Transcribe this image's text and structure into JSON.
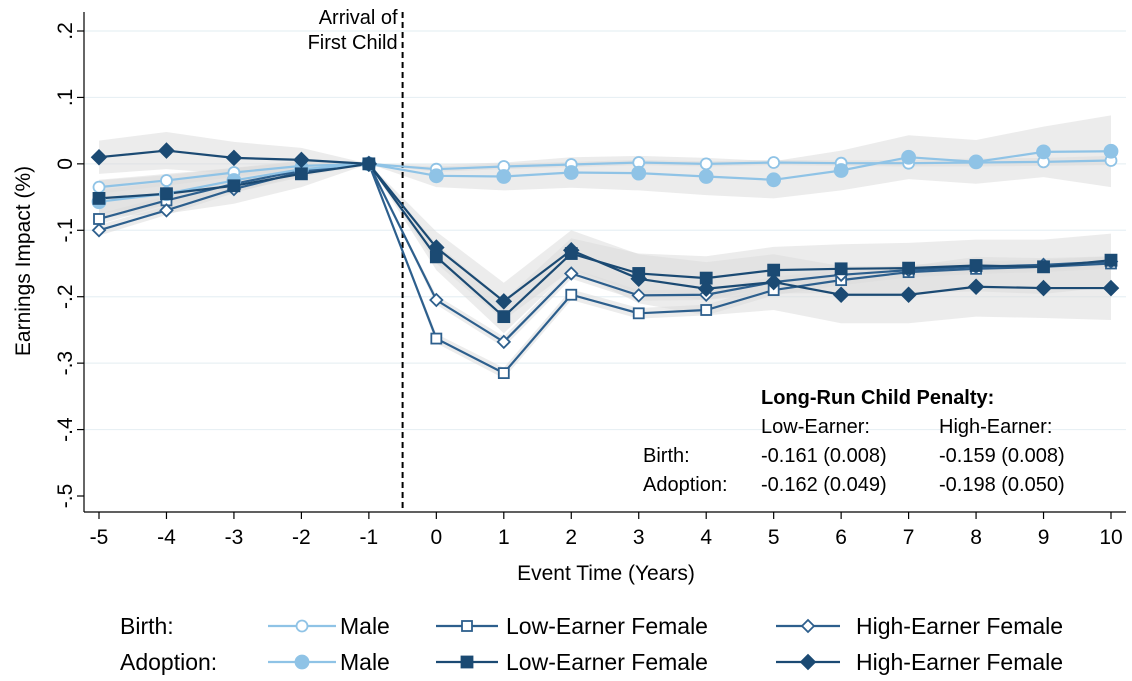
{
  "chart_data": {
    "type": "line",
    "title": "",
    "xlabel": "Event Time (Years)",
    "ylabel": "Earnings Impact (%)",
    "xlim": [
      -5,
      10
    ],
    "ylim": [
      -0.5,
      0.2
    ],
    "x": [
      -5,
      -4,
      -3,
      -2,
      -1,
      0,
      1,
      2,
      3,
      4,
      5,
      6,
      7,
      8,
      9,
      10
    ],
    "x_tick_labels": [
      "-5",
      "-4",
      "-3",
      "-2",
      "-1",
      "0",
      "1",
      "2",
      "3",
      "4",
      "5",
      "6",
      "7",
      "8",
      "9",
      "10"
    ],
    "y_ticks": [
      -0.5,
      -0.4,
      -0.3,
      -0.2,
      -0.1,
      0,
      0.1,
      0.2
    ],
    "y_tick_labels": [
      "-.5",
      "-.4",
      "-.3",
      "-.2",
      "-.1",
      "0",
      ".1",
      ".2"
    ],
    "grid": "horizontal",
    "vline": {
      "x": -0.5,
      "label_lines": [
        "Arrival of",
        "First Child"
      ]
    },
    "series": [
      {
        "group": "Birth",
        "name": "Male",
        "color": "#8fc3e6",
        "marker": "circle-hollow",
        "values": [
          -0.035,
          -0.025,
          -0.013,
          -0.003,
          0,
          -0.008,
          -0.004,
          -0.001,
          0.002,
          0.0,
          0.002,
          0.001,
          0.001,
          0.002,
          0.003,
          0.005
        ],
        "ci": [
          [
            -0.045,
            -0.025
          ],
          [
            -0.033,
            -0.017
          ],
          [
            -0.02,
            -0.006
          ],
          [
            -0.008,
            0.002
          ],
          [
            0,
            0
          ],
          [
            -0.012,
            -0.004
          ],
          [
            -0.008,
            0.0
          ],
          [
            -0.005,
            0.003
          ],
          [
            -0.002,
            0.006
          ],
          [
            -0.004,
            0.004
          ],
          [
            -0.002,
            0.006
          ],
          [
            -0.003,
            0.005
          ],
          [
            -0.004,
            0.006
          ],
          [
            -0.004,
            0.008
          ],
          [
            -0.003,
            0.009
          ],
          [
            -0.002,
            0.012
          ]
        ]
      },
      {
        "group": "Birth",
        "name": "Low-Earner Female",
        "color": "#2d5f8d",
        "marker": "square-hollow",
        "values": [
          -0.083,
          -0.055,
          -0.03,
          -0.01,
          0,
          -0.263,
          -0.315,
          -0.197,
          -0.225,
          -0.22,
          -0.19,
          -0.175,
          -0.163,
          -0.158,
          -0.155,
          -0.15
        ],
        "ci": [
          [
            -0.091,
            -0.075
          ],
          [
            -0.062,
            -0.048
          ],
          [
            -0.036,
            -0.024
          ],
          [
            -0.015,
            -0.005
          ],
          [
            0,
            0
          ],
          [
            -0.27,
            -0.256
          ],
          [
            -0.323,
            -0.307
          ],
          [
            -0.205,
            -0.189
          ],
          [
            -0.233,
            -0.217
          ],
          [
            -0.228,
            -0.212
          ],
          [
            -0.198,
            -0.182
          ],
          [
            -0.183,
            -0.167
          ],
          [
            -0.171,
            -0.155
          ],
          [
            -0.166,
            -0.15
          ],
          [
            -0.163,
            -0.147
          ],
          [
            -0.158,
            -0.142
          ]
        ]
      },
      {
        "group": "Birth",
        "name": "High-Earner Female",
        "color": "#2d5f8d",
        "marker": "diamond-hollow",
        "values": [
          -0.1,
          -0.07,
          -0.038,
          -0.012,
          0,
          -0.205,
          -0.268,
          -0.165,
          -0.198,
          -0.197,
          -0.178,
          -0.167,
          -0.16,
          -0.155,
          -0.152,
          -0.147
        ],
        "ci": [
          [
            -0.108,
            -0.092
          ],
          [
            -0.077,
            -0.063
          ],
          [
            -0.044,
            -0.032
          ],
          [
            -0.017,
            -0.007
          ],
          [
            0,
            0
          ],
          [
            -0.212,
            -0.198
          ],
          [
            -0.276,
            -0.26
          ],
          [
            -0.173,
            -0.157
          ],
          [
            -0.206,
            -0.19
          ],
          [
            -0.205,
            -0.189
          ],
          [
            -0.186,
            -0.17
          ],
          [
            -0.175,
            -0.159
          ],
          [
            -0.168,
            -0.152
          ],
          [
            -0.163,
            -0.147
          ],
          [
            -0.16,
            -0.144
          ],
          [
            -0.155,
            -0.139
          ]
        ]
      },
      {
        "group": "Adoption",
        "name": "Male",
        "color": "#8fc3e6",
        "marker": "circle-filled",
        "values": [
          -0.057,
          -0.045,
          -0.025,
          -0.008,
          0,
          -0.018,
          -0.019,
          -0.013,
          -0.014,
          -0.019,
          -0.024,
          -0.01,
          0.01,
          0.003,
          0.018,
          0.019
        ],
        "ci": [
          [
            -0.075,
            -0.039
          ],
          [
            -0.063,
            -0.027
          ],
          [
            -0.043,
            -0.007
          ],
          [
            -0.02,
            0.004
          ],
          [
            0,
            0
          ],
          [
            -0.035,
            -0.001
          ],
          [
            -0.04,
            0.002
          ],
          [
            -0.036,
            0.01
          ],
          [
            -0.04,
            0.012
          ],
          [
            -0.047,
            0.009
          ],
          [
            -0.052,
            0.004
          ],
          [
            -0.04,
            0.02
          ],
          [
            -0.023,
            0.043
          ],
          [
            -0.03,
            0.036
          ],
          [
            -0.02,
            0.056
          ],
          [
            -0.035,
            0.073
          ]
        ]
      },
      {
        "group": "Adoption",
        "name": "Low-Earner Female",
        "color": "#1b4a73",
        "marker": "square-filled",
        "values": [
          -0.052,
          -0.045,
          -0.033,
          -0.015,
          0,
          -0.14,
          -0.23,
          -0.135,
          -0.165,
          -0.172,
          -0.16,
          -0.158,
          -0.157,
          -0.153,
          -0.155,
          -0.145
        ],
        "ci": [
          [
            -0.08,
            -0.024
          ],
          [
            -0.075,
            -0.015
          ],
          [
            -0.06,
            -0.006
          ],
          [
            -0.035,
            0.005
          ],
          [
            0,
            0
          ],
          [
            -0.16,
            -0.12
          ],
          [
            -0.255,
            -0.205
          ],
          [
            -0.158,
            -0.112
          ],
          [
            -0.195,
            -0.135
          ],
          [
            -0.205,
            -0.139
          ],
          [
            -0.195,
            -0.125
          ],
          [
            -0.195,
            -0.121
          ],
          [
            -0.195,
            -0.119
          ],
          [
            -0.192,
            -0.114
          ],
          [
            -0.196,
            -0.114
          ],
          [
            -0.185,
            -0.105
          ]
        ]
      },
      {
        "group": "Adoption",
        "name": "High-Earner Female",
        "color": "#1b4a73",
        "marker": "diamond-filled",
        "values": [
          0.01,
          0.02,
          0.009,
          0.006,
          0,
          -0.126,
          -0.207,
          -0.13,
          -0.173,
          -0.188,
          -0.178,
          -0.197,
          -0.197,
          -0.185,
          -0.187,
          -0.187
        ],
        "ci": [
          [
            -0.015,
            0.035
          ],
          [
            -0.008,
            0.048
          ],
          [
            -0.015,
            0.033
          ],
          [
            -0.012,
            0.024
          ],
          [
            0,
            0
          ],
          [
            -0.15,
            -0.102
          ],
          [
            -0.235,
            -0.179
          ],
          [
            -0.16,
            -0.1
          ],
          [
            -0.21,
            -0.136
          ],
          [
            -0.228,
            -0.148
          ],
          [
            -0.22,
            -0.136
          ],
          [
            -0.24,
            -0.154
          ],
          [
            -0.24,
            -0.154
          ],
          [
            -0.23,
            -0.14
          ],
          [
            -0.232,
            -0.142
          ],
          [
            -0.235,
            -0.139
          ]
        ]
      }
    ],
    "annotation": {
      "title": "Long-Run Child Penalty:",
      "col_headers": [
        "Low-Earner:",
        "High-Earner:"
      ],
      "rows": [
        {
          "label": "Birth:",
          "low": "-0.161 (0.008)",
          "high": "-0.159 (0.008)"
        },
        {
          "label": "Adoption:",
          "low": "-0.162 (0.049)",
          "high": "-0.198 (0.050)"
        }
      ]
    },
    "legend": {
      "placement": "bottom",
      "row_labels": [
        "Birth:",
        "Adoption:"
      ],
      "entries": [
        "Male",
        "Low-Earner Female",
        "High-Earner Female"
      ]
    },
    "ci_color": "#dcdcdc"
  }
}
